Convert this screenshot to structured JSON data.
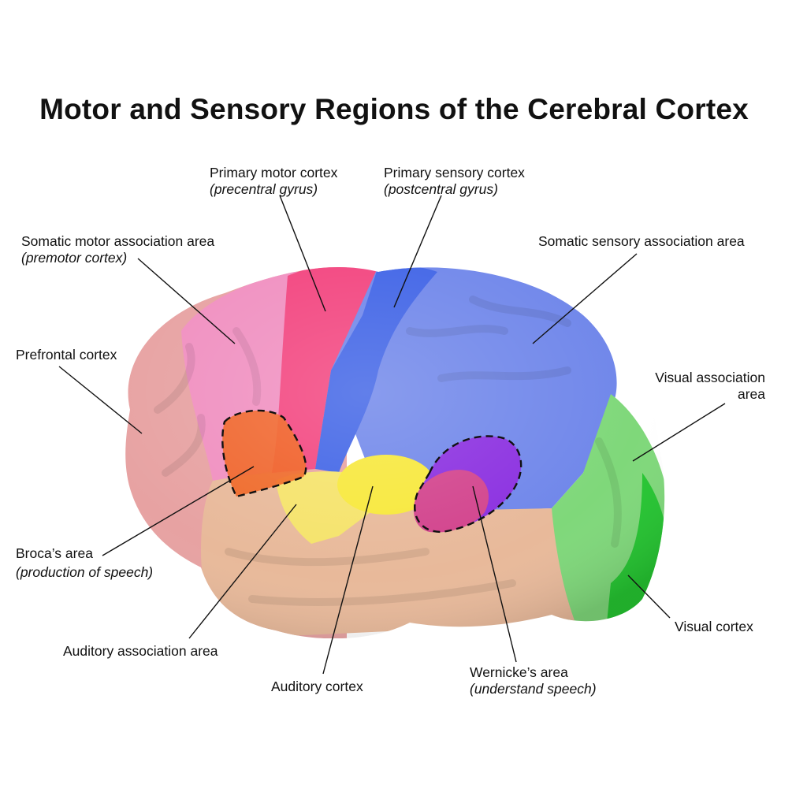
{
  "title": "Motor and Sensory Regions of the Cerebral Cortex",
  "labels": {
    "primary_motor": {
      "main": "Primary motor cortex",
      "sub": "(precentral gyrus)"
    },
    "primary_sensory": {
      "main": "Primary sensory cortex",
      "sub": "(postcentral gyrus)"
    },
    "somatic_motor": {
      "main": "Somatic motor association area",
      "sub": "(premotor cortex)"
    },
    "somatic_sensory": {
      "main": "Somatic sensory association area"
    },
    "prefrontal": {
      "main": "Prefrontal cortex"
    },
    "visual_assoc": {
      "main": "Visual association",
      "sub": "area"
    },
    "broca": {
      "main": "Broca’s area",
      "sub": "(production of speech)"
    },
    "auditory_assoc": {
      "main": "Auditory association area"
    },
    "auditory": {
      "main": "Auditory cortex"
    },
    "wernicke": {
      "main": "Wernicke’s area",
      "sub": "(understand speech)"
    },
    "visual": {
      "main": "Visual cortex"
    }
  },
  "colors": {
    "prefrontal": "#e7a2a2",
    "premotor": "#f08fc0",
    "primary_motor": "#f2437e",
    "primary_sensory": "#3f63e6",
    "sensory_assoc": "#6f86ea",
    "visual_assoc": "#7fd87a",
    "visual": "#25c531",
    "temporal": "#e8b99a",
    "auditory_assoc": "#f5e36a",
    "auditory": "#f7e83a",
    "broca": "#f0621e",
    "wernicke_fill": "#8a2ee0",
    "wernicke_pink": "#d2428c"
  }
}
